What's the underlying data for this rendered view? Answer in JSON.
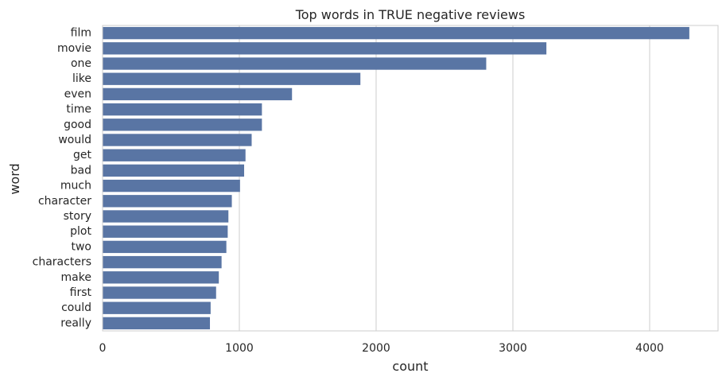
{
  "chart_data": {
    "type": "bar",
    "orientation": "horizontal",
    "title": "Top words in TRUE negative reviews",
    "xlabel": "count",
    "ylabel": "word",
    "categories": [
      "film",
      "movie",
      "one",
      "like",
      "even",
      "time",
      "good",
      "would",
      "get",
      "bad",
      "much",
      "character",
      "story",
      "plot",
      "two",
      "characters",
      "make",
      "first",
      "could",
      "really"
    ],
    "values": [
      4290,
      3245,
      2805,
      1885,
      1385,
      1165,
      1165,
      1090,
      1045,
      1035,
      1005,
      945,
      920,
      915,
      905,
      870,
      850,
      830,
      790,
      785
    ],
    "xlim": [
      0,
      4500
    ],
    "xticks": [
      0,
      1000,
      2000,
      3000,
      4000
    ],
    "xtick_labels": [
      "0",
      "1000",
      "2000",
      "3000",
      "4000"
    ],
    "grid": "vertical",
    "bar_color": "#5975a4"
  }
}
